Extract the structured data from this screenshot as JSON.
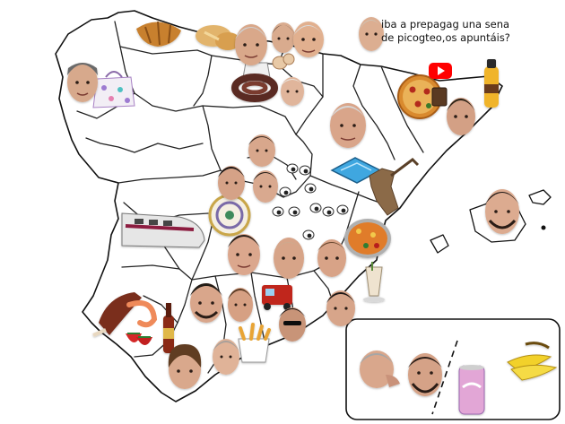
{
  "caption": {
    "line1": "iba a prepagag una sena",
    "line2": "de picogteo,os apuntáis?"
  },
  "faces": [
    {
      "name": "face-galicia",
      "skin": "#d7a98c",
      "hair": "#6b6b6b"
    },
    {
      "name": "face-cantabria",
      "skin": "#d9a88a",
      "hair": "#cfcfcf"
    },
    {
      "name": "face-cantabria-2",
      "skin": "#d9ab8e",
      "hair": "#3a2a20"
    },
    {
      "name": "face-pais-vasco",
      "skin": "#e1b08f",
      "hair": "#dcdcdc"
    },
    {
      "name": "face-caption-speaker",
      "skin": "#dcae91",
      "hair": "#cfc3b4"
    },
    {
      "name": "face-burgos",
      "skin": "#e0b59b",
      "hair": "#e8e1d9"
    },
    {
      "name": "face-aragon",
      "skin": "#d9a58a",
      "hair": "#d6d6d6"
    },
    {
      "name": "face-catalonia",
      "skin": "#d3a085",
      "hair": "#2b2018"
    },
    {
      "name": "face-madrid-north",
      "skin": "#d8a78c",
      "hair": "#3a2b22"
    },
    {
      "name": "face-avila",
      "skin": "#d5a287",
      "hair": "#1f1914"
    },
    {
      "name": "face-madrid",
      "skin": "#d9a98f",
      "hair": "#2a211b"
    },
    {
      "name": "face-baleares",
      "skin": "#dcab90",
      "hair": "#1c1612"
    },
    {
      "name": "face-castilla-la-mancha",
      "skin": "#dba78d",
      "hair": "#2e241e"
    },
    {
      "name": "face-cuenca",
      "skin": "#d7a488",
      "hair": "#cfa98d"
    },
    {
      "name": "face-valencia",
      "skin": "#d8a387",
      "hair": "#6a4a30"
    },
    {
      "name": "face-extremadura",
      "skin": "#d9a68b",
      "hair": "#231a15"
    },
    {
      "name": "face-cordoba",
      "skin": "#d6a083",
      "hair": "#5b3d28"
    },
    {
      "name": "face-jaen",
      "skin": "#c89478",
      "hair": "#151110"
    },
    {
      "name": "face-murcia",
      "skin": "#d7a58a",
      "hair": "#1e1814"
    },
    {
      "name": "face-sevilla",
      "skin": "#d9a88c",
      "hair": "#613e24"
    },
    {
      "name": "face-malaga",
      "skin": "#e0b398",
      "hair": "#a9a09a"
    },
    {
      "name": "face-canarias-left",
      "skin": "#d9a78c",
      "hair": "#a6a6a6"
    },
    {
      "name": "face-canarias-right",
      "skin": "#d5a287",
      "hair": "#2a1f18"
    }
  ],
  "objects": [
    {
      "name": "croissant-icon",
      "color": "#c8802f"
    },
    {
      "name": "bread-icon",
      "color": "#e2b46c"
    },
    {
      "name": "eggs-icon",
      "color": "#e8c9a6"
    },
    {
      "name": "bag-icon",
      "color": "#f0f0f0"
    },
    {
      "name": "sausage-icon",
      "color": "#5a2b22"
    },
    {
      "name": "youtube-icon",
      "color": "#ff0000"
    },
    {
      "name": "cacaolat-bottle-icon",
      "color": "#f0b429"
    },
    {
      "name": "pizza-icon",
      "color": "#d98a2e"
    },
    {
      "name": "pool-icon",
      "color": "#3fa7e0"
    },
    {
      "name": "chocolate-icon",
      "color": "#5a3a22"
    },
    {
      "name": "donkey-statue-icon",
      "color": "#8b6a48"
    },
    {
      "name": "train-icon",
      "color": "#e6e6e6"
    },
    {
      "name": "decorative-plate-icon",
      "color": "#7a6aa8"
    },
    {
      "name": "eyes-icon",
      "color": "#ffffff"
    },
    {
      "name": "paella-icon",
      "color": "#e07b2a"
    },
    {
      "name": "horchata-icon",
      "color": "#efe3cf"
    },
    {
      "name": "fire-truck-icon",
      "color": "#c0281e"
    },
    {
      "name": "ham-icon",
      "color": "#7a2e1e"
    },
    {
      "name": "shrimp-icon",
      "color": "#ef8a5a"
    },
    {
      "name": "strawberries-icon",
      "color": "#d42828"
    },
    {
      "name": "beer-bottle-icon",
      "color": "#8a2a12"
    },
    {
      "name": "fries-icon",
      "color": "#e8a434"
    },
    {
      "name": "bananas-icon",
      "color": "#f2d12b"
    },
    {
      "name": "soda-can-icon",
      "color": "#e2a6d6"
    },
    {
      "name": "louis-vuitton-bag-icon",
      "color": "#f2eef5"
    }
  ]
}
